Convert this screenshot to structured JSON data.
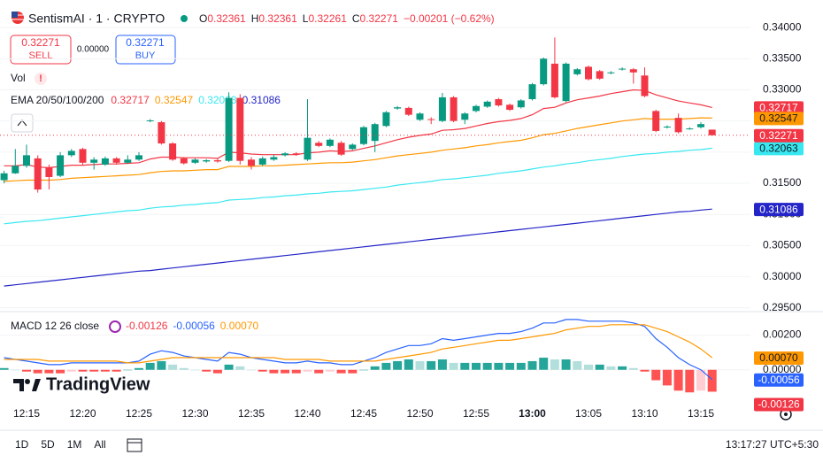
{
  "header": {
    "symbol": "SentismAI · 1 · CRYPTO",
    "o": "O",
    "h": "H",
    "l": "L",
    "c": "C",
    "change": "−0.00201 (−0.62%)"
  },
  "trade": {
    "sell": "SELL",
    "spread": "0.00000",
    "buy": "BUY"
  },
  "vol_label": "Vol",
  "ema_label": "EMA 20/50/100/200",
  "macd_label": "MACD 12 26 close",
  "watermark": "TradingView",
  "time": "13:17:27 UTC+5:30",
  "ranges": [
    "1D",
    "5D",
    "1M",
    "All"
  ],
  "chart_data": [
    {
      "type": "candlestick",
      "up_color": "#089981",
      "down_color": "#f23645",
      "categories": [
        null,
        null,
        "12:15",
        null,
        null,
        null,
        null,
        "12:20",
        null,
        null,
        null,
        null,
        "12:25",
        null,
        null,
        null,
        null,
        "12:30",
        null,
        null,
        null,
        null,
        "12:35",
        null,
        null,
        null,
        null,
        "12:40",
        null,
        null,
        null,
        null,
        "12:45",
        null,
        null,
        null,
        null,
        "12:50",
        null,
        null,
        null,
        null,
        "12:55",
        null,
        null,
        null,
        null,
        "13:00",
        null,
        null,
        null,
        null,
        "13:05",
        null,
        null,
        null,
        null,
        "13:10",
        null,
        null,
        null,
        null,
        "13:15",
        null
      ],
      "open": [
        0.3155,
        0.3166,
        0.3178,
        0.319,
        0.3175,
        0.3162,
        0.3195,
        0.3205,
        0.3183,
        0.318,
        0.319,
        0.3183,
        0.3188,
        0.325,
        0.3248,
        0.3214,
        0.319,
        0.3183,
        0.3185,
        0.3187,
        0.3186,
        0.3287,
        0.3188,
        0.318,
        0.3188,
        0.3195,
        0.3198,
        0.3188,
        0.3215,
        0.321,
        0.3215,
        0.3205,
        0.3213,
        0.3218,
        0.3242,
        0.327,
        0.3271,
        0.3252,
        0.3253,
        0.325,
        0.3288,
        0.3252,
        0.3266,
        0.3273,
        0.3285,
        0.3276,
        0.3272,
        0.3285,
        0.3309,
        0.3342,
        0.3282,
        0.3325,
        0.3337,
        0.333,
        0.3327,
        0.3333,
        0.3333,
        0.3323,
        0.3266,
        0.324,
        0.3255,
        0.3238,
        0.324,
        0.32361
      ],
      "high": [
        0.317,
        0.3205,
        0.3212,
        0.3195,
        0.318,
        0.32,
        0.3205,
        0.3207,
        0.3192,
        0.3193,
        0.3192,
        0.3195,
        0.32,
        0.3253,
        0.325,
        0.3216,
        0.3192,
        0.319,
        0.3189,
        0.319,
        0.3296,
        0.3293,
        0.3192,
        0.3193,
        0.3196,
        0.32,
        0.32,
        0.3285,
        0.3218,
        0.3222,
        0.3218,
        0.3214,
        0.3242,
        0.3247,
        0.3266,
        0.3274,
        0.3273,
        0.3264,
        0.3256,
        0.3295,
        0.329,
        0.3264,
        0.3276,
        0.3283,
        0.3287,
        0.3278,
        0.3285,
        0.3311,
        0.3352,
        0.3384,
        0.3344,
        0.3335,
        0.3339,
        0.3332,
        0.333,
        0.3336,
        0.3335,
        0.3336,
        0.3268,
        0.3243,
        0.3262,
        0.324,
        0.3248,
        0.32361
      ],
      "low": [
        0.315,
        0.3165,
        0.3175,
        0.3135,
        0.314,
        0.316,
        0.3192,
        0.318,
        0.3172,
        0.3178,
        0.318,
        0.3181,
        0.3186,
        0.3248,
        0.3212,
        0.3186,
        0.318,
        0.3181,
        0.3183,
        0.3183,
        0.3184,
        0.318,
        0.3172,
        0.3178,
        0.3186,
        0.3193,
        0.3194,
        0.3186,
        0.3208,
        0.3208,
        0.3194,
        0.3203,
        0.3211,
        0.32,
        0.324,
        0.3268,
        0.3258,
        0.325,
        0.3245,
        0.3248,
        0.3248,
        0.3245,
        0.3264,
        0.3271,
        0.3273,
        0.3266,
        0.327,
        0.3283,
        0.3307,
        0.3286,
        0.328,
        0.3323,
        0.3315,
        0.3316,
        0.3325,
        0.3331,
        0.331,
        0.3288,
        0.3232,
        0.3238,
        0.323,
        0.3236,
        0.3238,
        0.32261
      ],
      "close": [
        0.3166,
        0.3178,
        0.3195,
        0.314,
        0.316,
        0.3195,
        0.3202,
        0.3183,
        0.3188,
        0.319,
        0.3183,
        0.3188,
        0.3195,
        0.3251,
        0.3214,
        0.3188,
        0.3182,
        0.3188,
        0.3187,
        0.3185,
        0.3287,
        0.3186,
        0.3178,
        0.319,
        0.3192,
        0.3198,
        0.3196,
        0.3223,
        0.321,
        0.322,
        0.3196,
        0.3212,
        0.324,
        0.3245,
        0.3264,
        0.3272,
        0.326,
        0.3262,
        0.3252,
        0.3288,
        0.325,
        0.3262,
        0.3274,
        0.3281,
        0.3275,
        0.3268,
        0.3283,
        0.3309,
        0.335,
        0.3288,
        0.3342,
        0.3333,
        0.3317,
        0.3318,
        0.3328,
        0.3334,
        0.3328,
        0.329,
        0.3234,
        0.3241,
        0.3232,
        0.3238,
        0.3245,
        0.32271
      ],
      "series": [
        {
          "color": "#f23645",
          "values": [
            0.3178,
            0.3178,
            0.318,
            0.3176,
            0.3175,
            0.3177,
            0.3179,
            0.3179,
            0.318,
            0.3181,
            0.3181,
            0.3182,
            0.3183,
            0.3189,
            0.3192,
            0.3192,
            0.3191,
            0.3191,
            0.3191,
            0.319,
            0.32,
            0.3199,
            0.3197,
            0.3196,
            0.3196,
            0.3196,
            0.3196,
            0.3199,
            0.32,
            0.3202,
            0.3201,
            0.3202,
            0.3206,
            0.321,
            0.3215,
            0.322,
            0.3224,
            0.3227,
            0.3229,
            0.3235,
            0.3236,
            0.3238,
            0.3242,
            0.3246,
            0.3249,
            0.3251,
            0.3254,
            0.326,
            0.327,
            0.3272,
            0.3279,
            0.3284,
            0.3287,
            0.329,
            0.3294,
            0.3297,
            0.33,
            0.3299,
            0.3292,
            0.3287,
            0.3282,
            0.3279,
            0.3276,
            0.32717
          ]
        },
        {
          "color": "#ff9800",
          "values": [
            0.3153,
            0.3154,
            0.3155,
            0.3155,
            0.3155,
            0.3156,
            0.3158,
            0.3159,
            0.316,
            0.3161,
            0.3162,
            0.3163,
            0.3164,
            0.3167,
            0.3169,
            0.317,
            0.317,
            0.3171,
            0.3172,
            0.3172,
            0.3177,
            0.3177,
            0.3177,
            0.3178,
            0.3178,
            0.3179,
            0.318,
            0.3181,
            0.3182,
            0.3183,
            0.3183,
            0.3184,
            0.3186,
            0.3188,
            0.3191,
            0.3194,
            0.3196,
            0.3198,
            0.32,
            0.3203,
            0.3205,
            0.3207,
            0.321,
            0.3212,
            0.3215,
            0.3217,
            0.3219,
            0.3223,
            0.3228,
            0.323,
            0.3234,
            0.3238,
            0.3241,
            0.3244,
            0.3247,
            0.325,
            0.3252,
            0.3254,
            0.3253,
            0.3253,
            0.3253,
            0.3254,
            0.3255,
            0.32547
          ]
        },
        {
          "color": "#38e8f0",
          "values": [
            0.3085,
            0.3087,
            0.3089,
            0.309,
            0.3092,
            0.3094,
            0.3096,
            0.3098,
            0.31,
            0.3102,
            0.3104,
            0.3106,
            0.3107,
            0.311,
            0.3112,
            0.3113,
            0.3115,
            0.3116,
            0.3118,
            0.3119,
            0.3123,
            0.3124,
            0.3125,
            0.3127,
            0.3128,
            0.313,
            0.3131,
            0.3133,
            0.3134,
            0.3136,
            0.3137,
            0.3138,
            0.314,
            0.3142,
            0.3144,
            0.3147,
            0.3149,
            0.3151,
            0.3153,
            0.3156,
            0.3157,
            0.3159,
            0.3161,
            0.3163,
            0.3166,
            0.3168,
            0.317,
            0.3173,
            0.3176,
            0.3178,
            0.3181,
            0.3183,
            0.3186,
            0.3188,
            0.319,
            0.3193,
            0.3195,
            0.3197,
            0.3198,
            0.32,
            0.3201,
            0.3203,
            0.3204,
            0.32063
          ]
        },
        {
          "color": "#2424c8",
          "values": [
            0.2985,
            0.2987,
            0.2989,
            0.2991,
            0.2993,
            0.2995,
            0.2997,
            0.2999,
            0.3001,
            0.3003,
            0.3005,
            0.3007,
            0.3009,
            0.301,
            0.3012,
            0.3014,
            0.3016,
            0.3018,
            0.302,
            0.3022,
            0.3024,
            0.3026,
            0.3028,
            0.303,
            0.3032,
            0.3034,
            0.3036,
            0.3038,
            0.304,
            0.3042,
            0.3044,
            0.3046,
            0.3048,
            0.305,
            0.3052,
            0.3054,
            0.3056,
            0.3058,
            0.306,
            0.3062,
            0.3064,
            0.3066,
            0.3068,
            0.307,
            0.3072,
            0.3074,
            0.3076,
            0.3078,
            0.308,
            0.3082,
            0.3084,
            0.3086,
            0.3088,
            0.309,
            0.3092,
            0.3094,
            0.3096,
            0.3098,
            0.31,
            0.3102,
            0.3104,
            0.3105,
            0.3107,
            0.31086
          ]
        }
      ],
      "ylim": [
        0.2944,
        0.343
      ],
      "yticks": [
        {
          "value": 0.34,
          "label": "0.34000"
        },
        {
          "value": 0.335,
          "label": "0.33500"
        },
        {
          "value": 0.33,
          "label": "0.33000"
        },
        {
          "value": 0.325,
          "label": "0.32500"
        },
        {
          "value": 0.32,
          "label": "0.32000"
        },
        {
          "value": 0.315,
          "label": "0.31500"
        },
        {
          "value": 0.31,
          "label": "0.31000"
        },
        {
          "value": 0.305,
          "label": "0.30500"
        },
        {
          "value": 0.3,
          "label": "0.30000"
        },
        {
          "value": 0.295,
          "label": "0.29500"
        }
      ],
      "grid": true
    },
    {
      "type": "macd",
      "hist_colors": [
        "#26a69a",
        "#b2dfdb",
        "#ff5252",
        "#ffcdd2"
      ],
      "histogram": [
        0.0001,
        0,
        -0.0001,
        -0.0002,
        -0.0002,
        -0.0002,
        -0.0001,
        -0.0001,
        -0.0001,
        -0.0001,
        -0.0001,
        0,
        0.0001,
        0.0004,
        0.0005,
        0.0003,
        0.0001,
        0,
        -0.0001,
        -0.0002,
        0.0003,
        0.0002,
        0,
        -0.0001,
        -0.0002,
        -0.0002,
        -0.0002,
        -0.0001,
        -0.0002,
        -0.0001,
        -0.0002,
        -0.0002,
        0,
        0.0002,
        0.0004,
        0.0005,
        0.0006,
        0.0005,
        0.0005,
        0.0006,
        0.0004,
        0.0004,
        0.0004,
        0.0004,
        0.0004,
        0.0004,
        0.0004,
        0.0005,
        0.0007,
        0.0006,
        0.0006,
        0.0005,
        0.0003,
        0.0003,
        0.0002,
        0.0002,
        0.0001,
        -0.0001,
        -0.0006,
        -0.0009,
        -0.0012,
        -0.0013,
        -0.0012,
        -0.00126
      ],
      "hist_label_color": "#f23645",
      "series": [
        {
          "color": "#2962ff",
          "values": [
            0.0007,
            0.0006,
            0.0005,
            0.0004,
            0.0003,
            0.0003,
            0.0004,
            0.0004,
            0.0004,
            0.0004,
            0.0004,
            0.0004,
            0.0005,
            0.0009,
            0.0011,
            0.001,
            0.0008,
            0.0007,
            0.0006,
            0.0005,
            0.001,
            0.0009,
            0.0007,
            0.0006,
            0.0005,
            0.0004,
            0.0004,
            0.0005,
            0.0004,
            0.0004,
            0.0003,
            0.0003,
            0.0005,
            0.0007,
            0.001,
            0.0012,
            0.0014,
            0.0014,
            0.0015,
            0.0018,
            0.0017,
            0.0018,
            0.0019,
            0.002,
            0.0021,
            0.0021,
            0.0022,
            0.0024,
            0.0027,
            0.0027,
            0.0029,
            0.0029,
            0.0028,
            0.0028,
            0.0028,
            0.0028,
            0.0027,
            0.0025,
            0.0018,
            0.0013,
            0.0007,
            0.0003,
            0,
            -0.00056
          ]
        },
        {
          "color": "#ff9800",
          "values": [
            0.0006,
            0.0006,
            0.0006,
            0.0006,
            0.0005,
            0.0005,
            0.0005,
            0.0005,
            0.0005,
            0.0005,
            0.0005,
            0.0004,
            0.0004,
            0.0005,
            0.0006,
            0.0007,
            0.0007,
            0.0007,
            0.0007,
            0.0007,
            0.0007,
            0.0007,
            0.0007,
            0.0007,
            0.0007,
            0.0006,
            0.0006,
            0.0006,
            0.0006,
            0.0005,
            0.0005,
            0.0005,
            0.0005,
            0.0005,
            0.0006,
            0.0007,
            0.0008,
            0.0009,
            0.001,
            0.0012,
            0.0013,
            0.0014,
            0.0015,
            0.0016,
            0.0017,
            0.0017,
            0.0018,
            0.0019,
            0.002,
            0.0021,
            0.0023,
            0.0024,
            0.0025,
            0.0025,
            0.0026,
            0.0026,
            0.0026,
            0.0026,
            0.0024,
            0.0022,
            0.0019,
            0.0016,
            0.0012,
            0.0007
          ],
          "value_labels": [
            null,
            null,
            null,
            null,
            null,
            null,
            null,
            null,
            null,
            null,
            null,
            null,
            null,
            null,
            null,
            null,
            null,
            null,
            null,
            null,
            null,
            null,
            null,
            null,
            null,
            null,
            null,
            null,
            null,
            null,
            null,
            null,
            null,
            null,
            null,
            null,
            null,
            null,
            null,
            null,
            null,
            null,
            null,
            null,
            null,
            null,
            null,
            null,
            null,
            null,
            null,
            null,
            null,
            null,
            null,
            null,
            null,
            null,
            null,
            null,
            null,
            null,
            null,
            "0.00070"
          ]
        }
      ],
      "ylim": [
        -0.0019,
        0.0032
      ],
      "yticks": [
        {
          "value": 0.002,
          "label": "0.00200"
        },
        {
          "value": 0,
          "label": "0.00000"
        }
      ]
    }
  ]
}
